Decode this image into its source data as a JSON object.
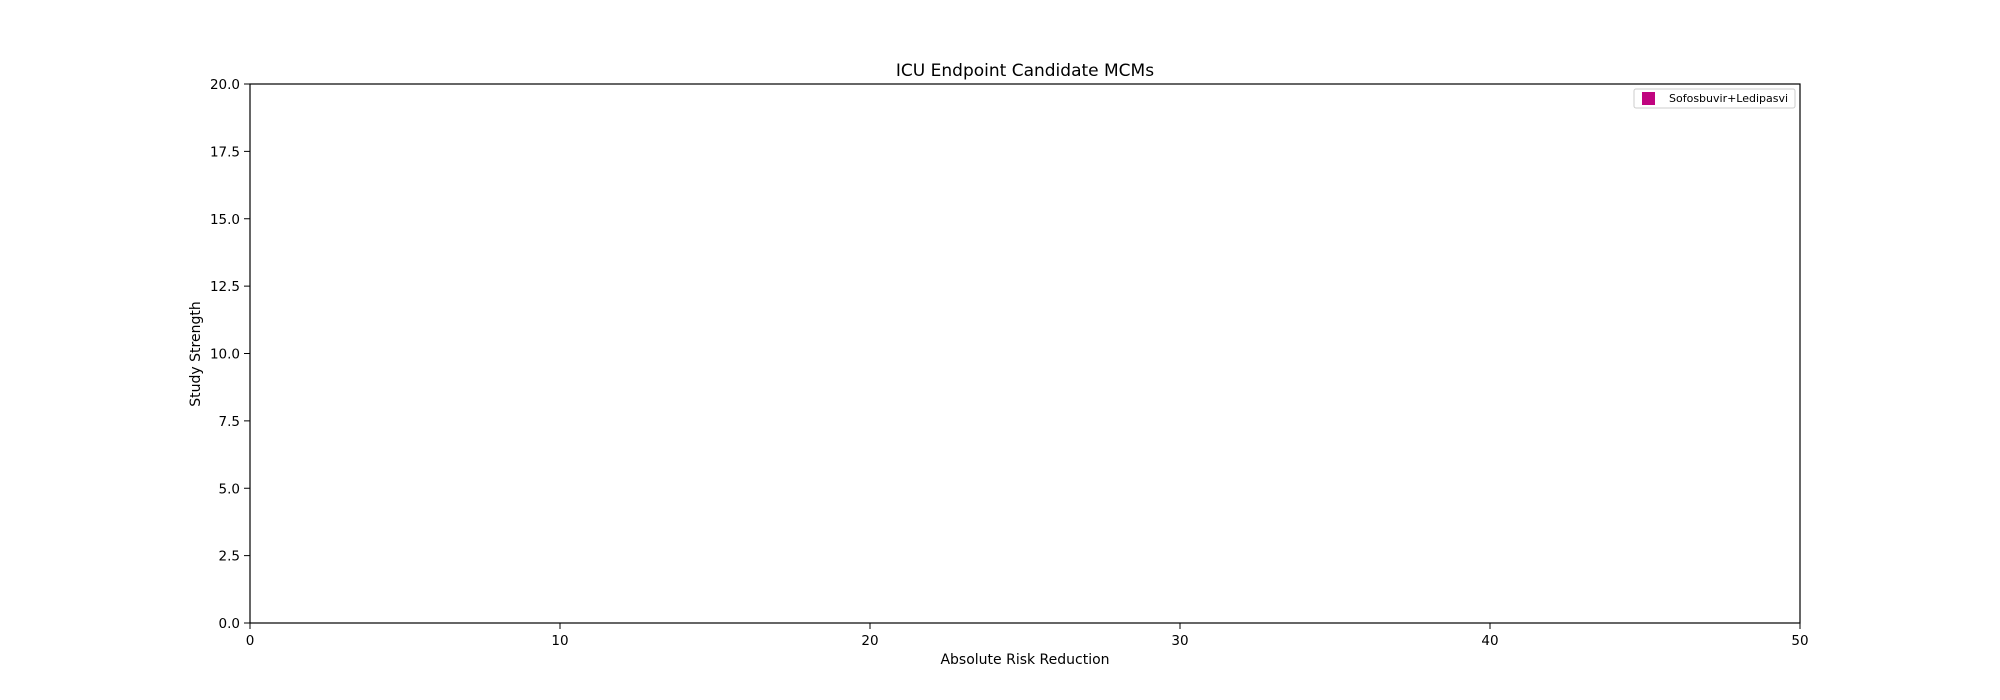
{
  "chart_data": {
    "type": "scatter",
    "title": "ICU Endpoint Candidate MCMs",
    "xlabel": "Absolute Risk Reduction",
    "ylabel": "Study Strength",
    "xlim": [
      0,
      50
    ],
    "ylim": [
      0,
      20
    ],
    "x_ticks": [
      "0",
      "10",
      "20",
      "30",
      "40",
      "50"
    ],
    "y_ticks": [
      "0.0",
      "2.5",
      "5.0",
      "7.5",
      "10.0",
      "12.5",
      "15.0",
      "17.5",
      "20.0"
    ],
    "grid": false,
    "legend_position": "top-right",
    "series": [
      {
        "name": "Sofosbuvir+Ledipasvi",
        "marker": "square",
        "color": "#c0047f",
        "points": []
      }
    ]
  }
}
